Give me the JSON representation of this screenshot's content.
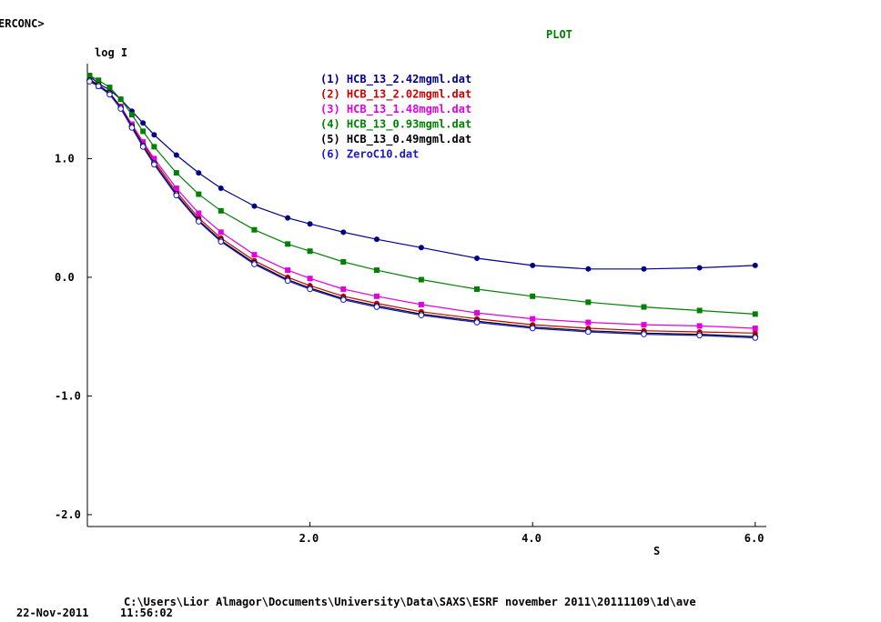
{
  "header": {
    "corner_tag": "ERCONC>",
    "title": "PLOT",
    "title_color": "#008000"
  },
  "footer": {
    "path": "C:\\Users\\Lior Almagor\\Documents\\University\\Data\\SAXS\\ESRF november 2011\\20111109\\1d\\ave",
    "date": "22-Nov-2011",
    "time": "11:56:02"
  },
  "chart_data": {
    "type": "scatter",
    "title": "PLOT",
    "xlabel": "S",
    "ylabel": "log I",
    "xlim": [
      0.0,
      6.1
    ],
    "ylim": [
      -2.1,
      1.8
    ],
    "x_ticks": [
      2.0,
      4.0,
      6.0
    ],
    "x_tick_labels": [
      "2.0",
      "4.0",
      "6.0"
    ],
    "y_ticks": [
      1.0,
      0.0,
      -1.0,
      -2.0
    ],
    "y_tick_labels": [
      "1.0",
      "0.0",
      "-1.0",
      "-2.0"
    ],
    "grid": false,
    "legend_position": "top-center",
    "series": [
      {
        "name": "(1) HCB_13_2.42mgml.dat",
        "color": "#00008b",
        "marker": "filled-circle",
        "points": [
          [
            0.02,
            1.7
          ],
          [
            0.1,
            1.63
          ],
          [
            0.2,
            1.58
          ],
          [
            0.3,
            1.5
          ],
          [
            0.4,
            1.4
          ],
          [
            0.5,
            1.3
          ],
          [
            0.6,
            1.2
          ],
          [
            0.8,
            1.03
          ],
          [
            1.0,
            0.88
          ],
          [
            1.2,
            0.75
          ],
          [
            1.5,
            0.6
          ],
          [
            1.8,
            0.5
          ],
          [
            2.0,
            0.45
          ],
          [
            2.3,
            0.38
          ],
          [
            2.6,
            0.32
          ],
          [
            3.0,
            0.25
          ],
          [
            3.5,
            0.16
          ],
          [
            4.0,
            0.1
          ],
          [
            4.5,
            0.07
          ],
          [
            5.0,
            0.07
          ],
          [
            5.5,
            0.08
          ],
          [
            6.0,
            0.1
          ]
        ]
      },
      {
        "name": "(2) HCB_13_2.02mgml.dat",
        "color": "#cc0000",
        "marker": "filled-circle",
        "points": [
          [
            0.02,
            1.67
          ],
          [
            0.1,
            1.62
          ],
          [
            0.2,
            1.55
          ],
          [
            0.3,
            1.44
          ],
          [
            0.4,
            1.28
          ],
          [
            0.5,
            1.13
          ],
          [
            0.6,
            0.98
          ],
          [
            0.8,
            0.72
          ],
          [
            1.0,
            0.5
          ],
          [
            1.2,
            0.33
          ],
          [
            1.5,
            0.14
          ],
          [
            1.8,
            0.0
          ],
          [
            2.0,
            -0.07
          ],
          [
            2.3,
            -0.16
          ],
          [
            2.6,
            -0.22
          ],
          [
            3.0,
            -0.29
          ],
          [
            3.5,
            -0.35
          ],
          [
            4.0,
            -0.4
          ],
          [
            4.5,
            -0.43
          ],
          [
            5.0,
            -0.45
          ],
          [
            5.5,
            -0.46
          ],
          [
            6.0,
            -0.47
          ]
        ]
      },
      {
        "name": "(3) HCB_13_1.48mgml.dat",
        "color": "#e000e0",
        "marker": "filled-square",
        "points": [
          [
            0.02,
            1.66
          ],
          [
            0.1,
            1.61
          ],
          [
            0.2,
            1.55
          ],
          [
            0.3,
            1.44
          ],
          [
            0.4,
            1.29
          ],
          [
            0.5,
            1.14
          ],
          [
            0.6,
            1.0
          ],
          [
            0.8,
            0.75
          ],
          [
            1.0,
            0.54
          ],
          [
            1.2,
            0.38
          ],
          [
            1.5,
            0.19
          ],
          [
            1.8,
            0.06
          ],
          [
            2.0,
            -0.01
          ],
          [
            2.3,
            -0.1
          ],
          [
            2.6,
            -0.16
          ],
          [
            3.0,
            -0.23
          ],
          [
            3.5,
            -0.3
          ],
          [
            4.0,
            -0.35
          ],
          [
            4.5,
            -0.38
          ],
          [
            5.0,
            -0.4
          ],
          [
            5.5,
            -0.41
          ],
          [
            6.0,
            -0.43
          ]
        ]
      },
      {
        "name": "(4) HCB_13_0.93mgml.dat",
        "color": "#008000",
        "marker": "filled-square",
        "points": [
          [
            0.02,
            1.7
          ],
          [
            0.1,
            1.66
          ],
          [
            0.2,
            1.6
          ],
          [
            0.3,
            1.5
          ],
          [
            0.4,
            1.37
          ],
          [
            0.5,
            1.23
          ],
          [
            0.6,
            1.1
          ],
          [
            0.8,
            0.88
          ],
          [
            1.0,
            0.7
          ],
          [
            1.2,
            0.56
          ],
          [
            1.5,
            0.4
          ],
          [
            1.8,
            0.28
          ],
          [
            2.0,
            0.22
          ],
          [
            2.3,
            0.13
          ],
          [
            2.6,
            0.06
          ],
          [
            3.0,
            -0.02
          ],
          [
            3.5,
            -0.1
          ],
          [
            4.0,
            -0.16
          ],
          [
            4.5,
            -0.21
          ],
          [
            5.0,
            -0.25
          ],
          [
            5.5,
            -0.28
          ],
          [
            6.0,
            -0.31
          ]
        ]
      },
      {
        "name": "(5) HCB_13_0.49mgml.dat",
        "color": "#000000",
        "marker": "open-circle",
        "points": [
          [
            0.02,
            1.66
          ],
          [
            0.1,
            1.62
          ],
          [
            0.2,
            1.55
          ],
          [
            0.3,
            1.43
          ],
          [
            0.4,
            1.27
          ],
          [
            0.5,
            1.11
          ],
          [
            0.6,
            0.96
          ],
          [
            0.8,
            0.7
          ],
          [
            1.0,
            0.48
          ],
          [
            1.2,
            0.31
          ],
          [
            1.5,
            0.12
          ],
          [
            1.8,
            -0.02
          ],
          [
            2.0,
            -0.09
          ],
          [
            2.3,
            -0.18
          ],
          [
            2.6,
            -0.24
          ],
          [
            3.0,
            -0.31
          ],
          [
            3.5,
            -0.37
          ],
          [
            4.0,
            -0.42
          ],
          [
            4.5,
            -0.45
          ],
          [
            5.0,
            -0.47
          ],
          [
            5.5,
            -0.48
          ],
          [
            6.0,
            -0.5
          ]
        ]
      },
      {
        "name": "(6) ZeroC10.dat",
        "color": "#1a1acc",
        "marker": "open-circle",
        "points": [
          [
            0.02,
            1.65
          ],
          [
            0.1,
            1.61
          ],
          [
            0.2,
            1.54
          ],
          [
            0.3,
            1.42
          ],
          [
            0.4,
            1.26
          ],
          [
            0.5,
            1.1
          ],
          [
            0.6,
            0.95
          ],
          [
            0.8,
            0.69
          ],
          [
            1.0,
            0.47
          ],
          [
            1.2,
            0.3
          ],
          [
            1.5,
            0.11
          ],
          [
            1.8,
            -0.03
          ],
          [
            2.0,
            -0.1
          ],
          [
            2.3,
            -0.19
          ],
          [
            2.6,
            -0.25
          ],
          [
            3.0,
            -0.32
          ],
          [
            3.5,
            -0.38
          ],
          [
            4.0,
            -0.43
          ],
          [
            4.5,
            -0.46
          ],
          [
            5.0,
            -0.48
          ],
          [
            5.5,
            -0.49
          ],
          [
            6.0,
            -0.51
          ]
        ]
      }
    ]
  }
}
